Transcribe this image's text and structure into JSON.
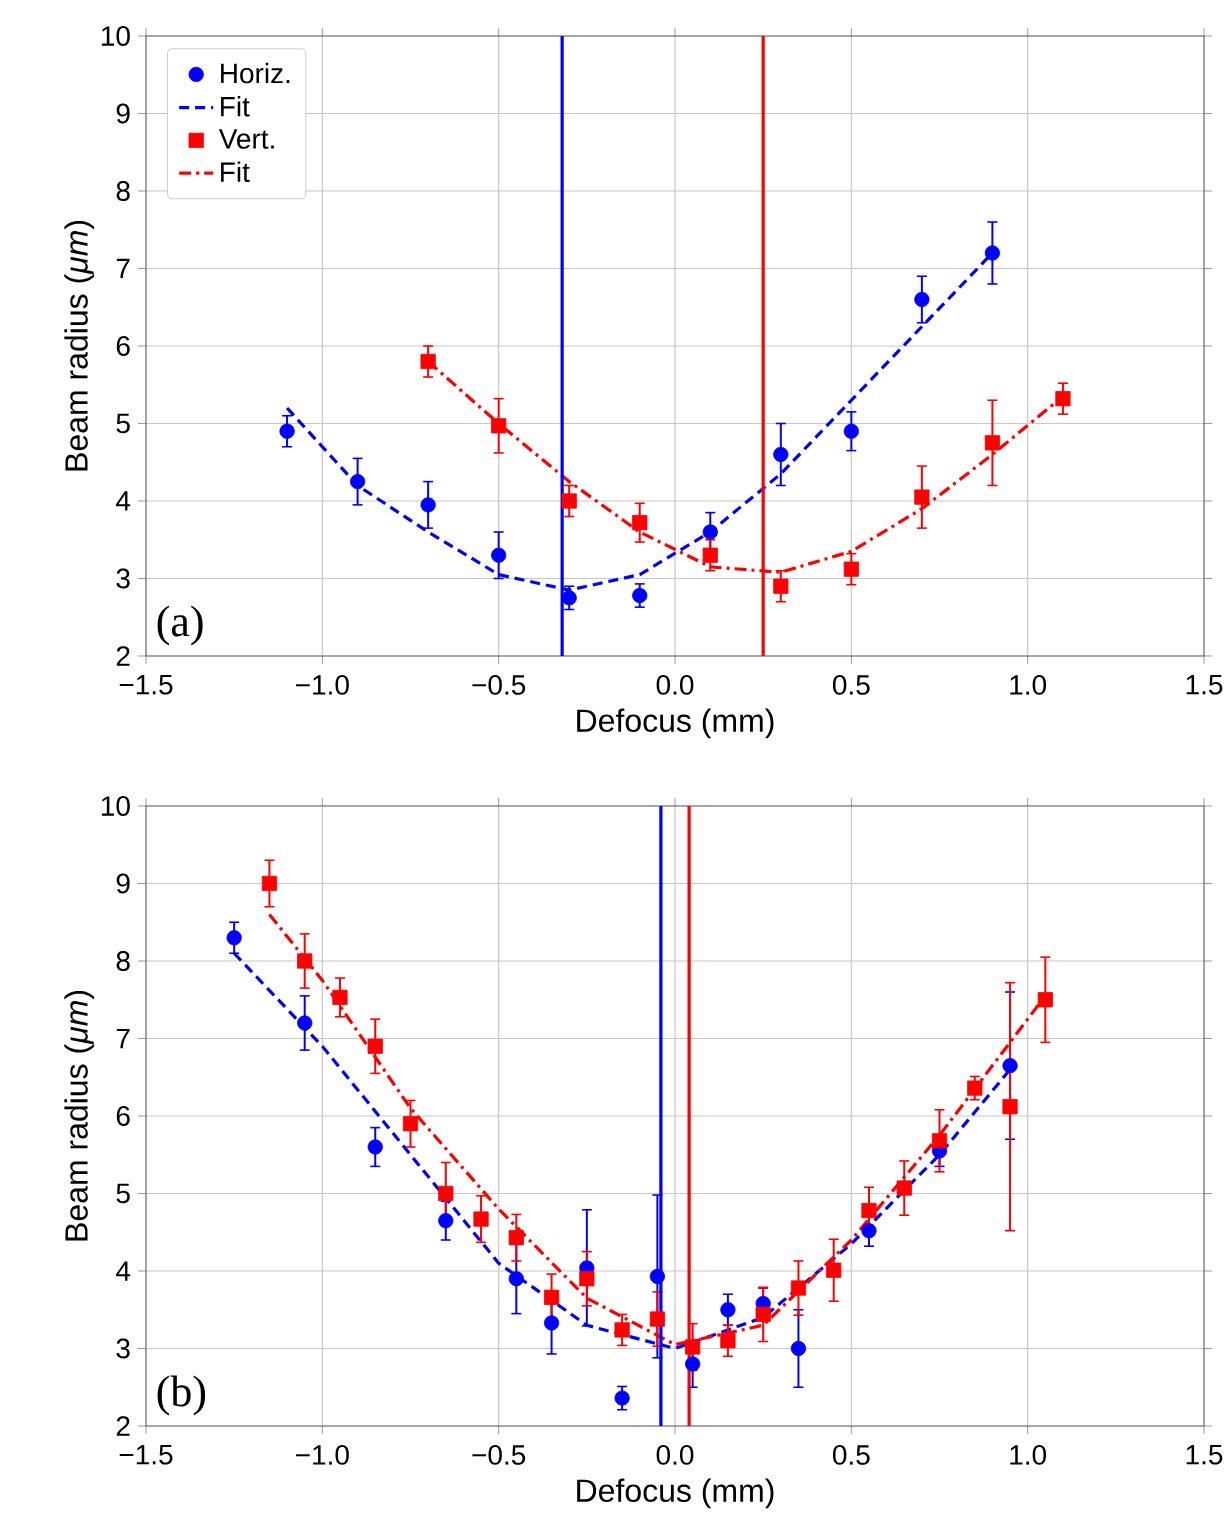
{
  "chart_data": [
    {
      "type": "scatter",
      "xlabel": "Defocus (mm)",
      "ylabel": "Beam radius (*μm*)",
      "annotations": [
        "(a)"
      ],
      "xlim": [
        -1.5,
        1.5
      ],
      "ylim": [
        2,
        10
      ],
      "xticks": [
        {
          "value": -1.5,
          "label": "−1.5"
        },
        {
          "value": -1.0,
          "label": "−1.0"
        },
        {
          "value": -0.5,
          "label": "−0.5"
        },
        {
          "value": 0.0,
          "label": "0.0"
        },
        {
          "value": 0.5,
          "label": "0.5"
        },
        {
          "value": 1.0,
          "label": "1.0"
        },
        {
          "value": 1.5,
          "label": "1.5"
        }
      ],
      "yticks": [
        2,
        3,
        4,
        5,
        6,
        7,
        8,
        9,
        10
      ],
      "grid": true,
      "legend": "top left",
      "ref_lines": [
        {
          "axis": "x",
          "value": -0.32,
          "color": "#0000ff"
        },
        {
          "axis": "x",
          "value": 0.25,
          "color": "#ff0000"
        }
      ],
      "series": [
        {
          "name": "Horiz.",
          "marker": "circle",
          "color": "#0000ff",
          "x": [
            -1.1,
            -0.9,
            -0.7,
            -0.5,
            -0.3,
            -0.1,
            0.1,
            0.3,
            0.5,
            0.7,
            0.9
          ],
          "values": [
            4.9,
            4.25,
            3.95,
            3.3,
            2.75,
            2.78,
            3.6,
            4.6,
            4.9,
            6.6,
            7.2
          ],
          "errors": [
            0.2,
            0.3,
            0.3,
            0.3,
            0.15,
            0.15,
            0.25,
            0.4,
            0.25,
            0.3,
            0.4
          ]
        },
        {
          "name": "Fit",
          "type": "line",
          "line_style": "dashed",
          "color": "#0000ff",
          "x": [
            -1.1,
            -0.9,
            -0.7,
            -0.5,
            -0.3,
            -0.1,
            0.1,
            0.3,
            0.5,
            0.7,
            0.9
          ],
          "values": [
            5.2,
            4.2,
            3.6,
            3.05,
            2.85,
            3.05,
            3.6,
            4.35,
            5.3,
            6.25,
            7.2
          ]
        },
        {
          "name": "Vert.",
          "marker": "square",
          "color": "#ff0000",
          "x": [
            -0.7,
            -0.5,
            -0.3,
            -0.1,
            0.1,
            0.3,
            0.5,
            0.7,
            0.9,
            1.1
          ],
          "values": [
            5.8,
            4.97,
            4.0,
            3.72,
            3.3,
            2.9,
            3.12,
            4.05,
            4.75,
            5.32
          ],
          "errors": [
            0.2,
            0.35,
            0.2,
            0.25,
            0.2,
            0.2,
            0.2,
            0.4,
            0.55,
            0.2
          ]
        },
        {
          "name": "Fit",
          "type": "line",
          "line_style": "dashdot",
          "color": "#ff0000",
          "x": [
            -0.7,
            -0.5,
            -0.3,
            -0.1,
            0.1,
            0.3,
            0.5,
            0.7,
            0.9,
            1.1
          ],
          "values": [
            5.8,
            5.0,
            4.25,
            3.6,
            3.15,
            3.08,
            3.35,
            3.9,
            4.6,
            5.35
          ]
        }
      ]
    },
    {
      "type": "scatter",
      "xlabel": "Defocus (mm)",
      "ylabel": "Beam radius (*μm*)",
      "annotations": [
        "(b)"
      ],
      "xlim": [
        -1.5,
        1.5
      ],
      "ylim": [
        2,
        10
      ],
      "xticks": [
        {
          "value": -1.5,
          "label": "−1.5"
        },
        {
          "value": -1.0,
          "label": "−1.0"
        },
        {
          "value": -0.5,
          "label": "−0.5"
        },
        {
          "value": 0.0,
          "label": "0.0"
        },
        {
          "value": 0.5,
          "label": "0.5"
        },
        {
          "value": 1.0,
          "label": "1.0"
        },
        {
          "value": 1.5,
          "label": "1.5"
        }
      ],
      "yticks": [
        2,
        3,
        4,
        5,
        6,
        7,
        8,
        9,
        10
      ],
      "grid": true,
      "ref_lines": [
        {
          "axis": "x",
          "value": -0.04,
          "color": "#0000ff"
        },
        {
          "axis": "x",
          "value": 0.04,
          "color": "#ff0000"
        }
      ],
      "series": [
        {
          "marker": "circle",
          "color": "#0000ff",
          "x": [
            -1.25,
            -1.05,
            -0.85,
            -0.65,
            -0.45,
            -0.35,
            -0.25,
            -0.15,
            -0.05,
            0.05,
            0.15,
            0.25,
            0.35,
            0.55,
            0.75,
            0.95
          ],
          "values": [
            8.3,
            7.2,
            5.6,
            4.65,
            3.9,
            3.33,
            4.04,
            2.36,
            3.93,
            2.8,
            3.5,
            3.58,
            3.0,
            4.52,
            5.55,
            6.65
          ],
          "errors": [
            0.2,
            0.35,
            0.25,
            0.25,
            0.45,
            0.4,
            0.75,
            0.15,
            1.05,
            0.3,
            0.2,
            0.2,
            0.5,
            0.2,
            0.2,
            0.95
          ]
        },
        {
          "type": "line",
          "line_style": "dashed",
          "color": "#0000ff",
          "x": [
            -1.25,
            -1.0,
            -0.75,
            -0.5,
            -0.25,
            0.0,
            0.25,
            0.5,
            0.75,
            0.95
          ],
          "values": [
            8.1,
            6.9,
            5.5,
            4.1,
            3.3,
            3.0,
            3.4,
            4.35,
            5.5,
            6.6
          ]
        },
        {
          "marker": "square",
          "color": "#ff0000",
          "x": [
            -1.15,
            -1.05,
            -0.95,
            -0.85,
            -0.75,
            -0.65,
            -0.55,
            -0.45,
            -0.35,
            -0.25,
            -0.15,
            -0.05,
            0.05,
            0.15,
            0.25,
            0.35,
            0.45,
            0.55,
            0.65,
            0.75,
            0.85,
            0.95,
            1.05
          ],
          "values": [
            9.0,
            8.0,
            7.53,
            6.9,
            5.9,
            5.0,
            4.67,
            4.43,
            3.66,
            3.9,
            3.24,
            3.38,
            3.02,
            3.1,
            3.44,
            3.78,
            4.01,
            4.78,
            5.07,
            5.68,
            6.36,
            6.12,
            7.5
          ],
          "errors": [
            0.3,
            0.35,
            0.25,
            0.35,
            0.3,
            0.4,
            0.3,
            0.3,
            0.3,
            0.35,
            0.2,
            0.35,
            0.3,
            0.2,
            0.35,
            0.35,
            0.4,
            0.3,
            0.35,
            0.4,
            0.15,
            1.6,
            0.55
          ]
        },
        {
          "type": "line",
          "line_style": "dashdot",
          "color": "#ff0000",
          "x": [
            -1.15,
            -1.0,
            -0.75,
            -0.5,
            -0.25,
            0.0,
            0.25,
            0.5,
            0.75,
            1.05
          ],
          "values": [
            8.6,
            7.75,
            6.1,
            4.8,
            3.65,
            3.05,
            3.3,
            4.4,
            5.75,
            7.55
          ]
        }
      ]
    }
  ]
}
